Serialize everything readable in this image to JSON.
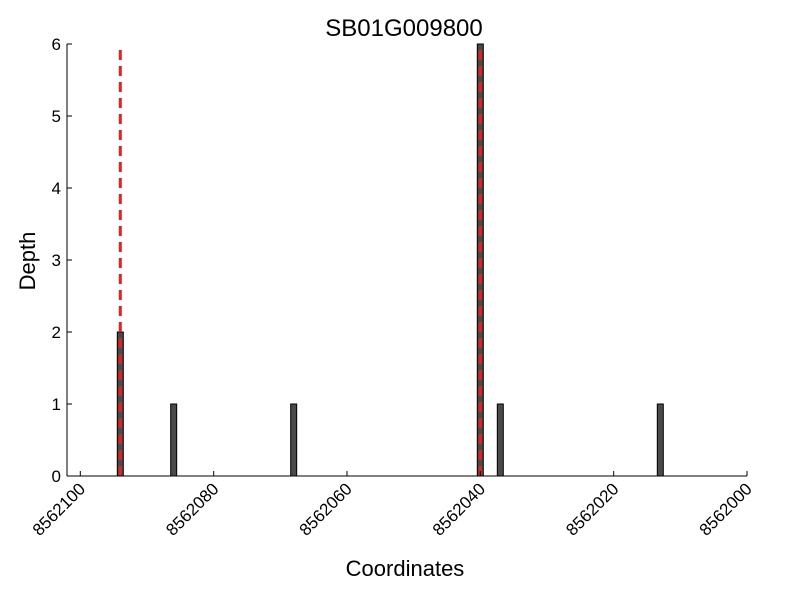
{
  "chart_data": {
    "type": "bar",
    "title": "SB01G009800",
    "xlabel": "Coordinates",
    "ylabel": "Depth",
    "x_reversed": true,
    "xlim": [
      8562102,
      8562000
    ],
    "ylim": [
      0,
      6
    ],
    "xticks": [
      "8562100",
      "8562080",
      "8562060",
      "8562040",
      "8562020",
      "8562000"
    ],
    "xtick_values": [
      8562100,
      8562080,
      8562060,
      8562040,
      8562020,
      8562000
    ],
    "yticks": [
      "0",
      "1",
      "2",
      "3",
      "4",
      "5",
      "6"
    ],
    "ytick_values": [
      0,
      1,
      2,
      3,
      4,
      5,
      6
    ],
    "grid": false,
    "bars": [
      {
        "x": 8562094,
        "value": 2
      },
      {
        "x": 8562086,
        "value": 1
      },
      {
        "x": 8562068,
        "value": 1
      },
      {
        "x": 8562040,
        "value": 6
      },
      {
        "x": 8562037,
        "value": 1
      },
      {
        "x": 8562013,
        "value": 1
      }
    ],
    "reference_lines": [
      {
        "x": 8562094,
        "color": "#e82020",
        "style": "dashed"
      },
      {
        "x": 8562040,
        "color": "#e82020",
        "style": "dashed"
      }
    ],
    "colors": {
      "bar_fill": "#4a4a4a",
      "bar_edge": "#000000",
      "reference": "#e82020"
    }
  }
}
